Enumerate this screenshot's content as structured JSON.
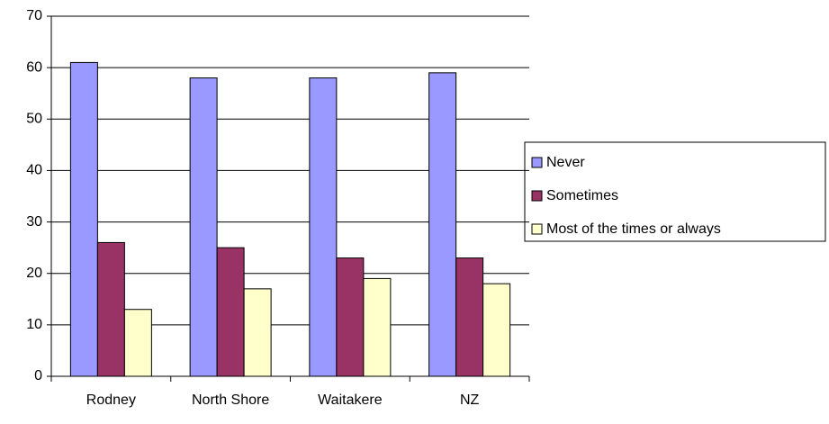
{
  "chart_data": {
    "type": "bar",
    "categories": [
      "Rodney",
      "North Shore",
      "Waitakere",
      "NZ"
    ],
    "series": [
      {
        "name": "Never",
        "color": "#9999ff",
        "values": [
          61,
          58,
          58,
          59
        ]
      },
      {
        "name": "Sometimes",
        "color": "#993366",
        "values": [
          26,
          25,
          23,
          23
        ]
      },
      {
        "name": "Most of the times or always",
        "color": "#ffffcc",
        "values": [
          13,
          17,
          19,
          18
        ]
      }
    ],
    "ylim": [
      0,
      70
    ],
    "yticks": [
      0,
      10,
      20,
      30,
      40,
      50,
      60,
      70
    ],
    "grid": true,
    "legend": "right"
  }
}
